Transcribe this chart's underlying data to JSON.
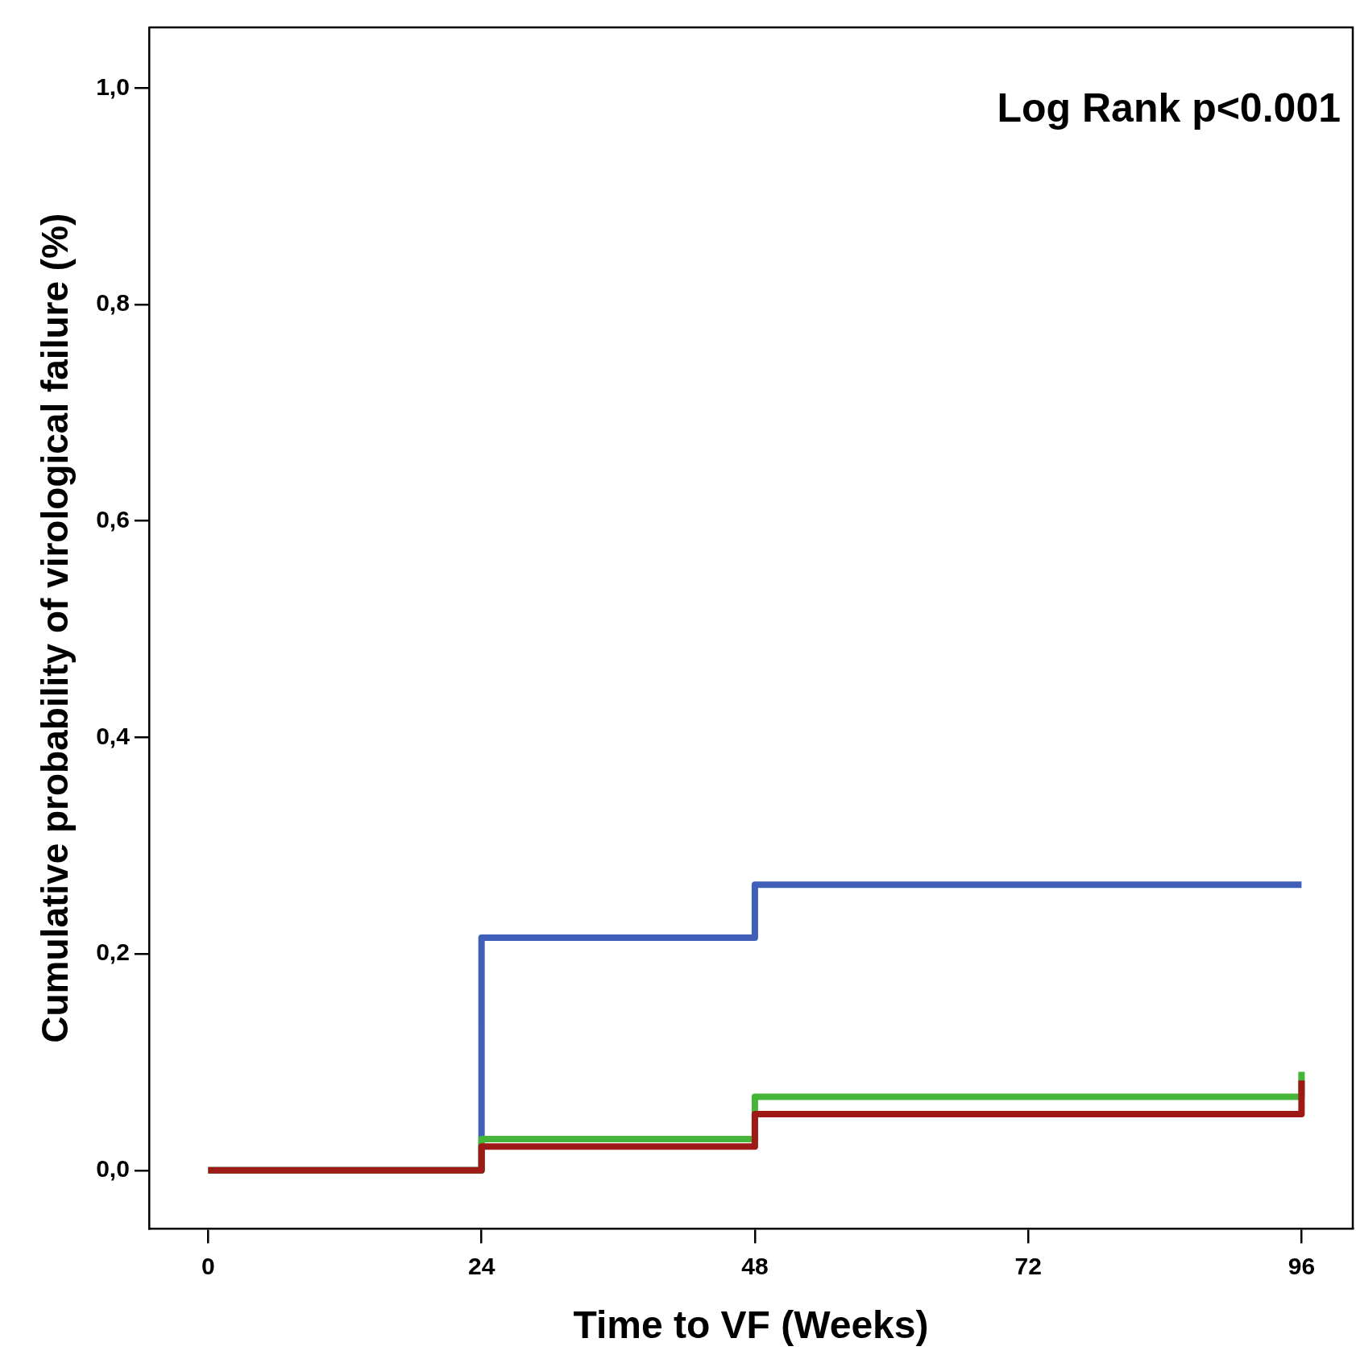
{
  "chart_data": {
    "type": "step",
    "xlabel": "Time to VF (Weeks)",
    "ylabel": "Cumulative probability of virological failure (%)",
    "annotations": [
      "Log Rank p<0.001"
    ],
    "series": [
      {
        "color": "#3f5fb8",
        "x": [
          0,
          24,
          48,
          96
        ],
        "values": [
          0,
          0.215,
          0.264,
          0.264
        ]
      },
      {
        "color": "#44b538",
        "x": [
          0,
          24,
          48,
          96,
          96
        ],
        "values": [
          0,
          0.029,
          0.068,
          0.068,
          0.091
        ]
      },
      {
        "color": "#9e1a16",
        "x": [
          0,
          24,
          48,
          96,
          96
        ],
        "values": [
          0,
          0.022,
          0.052,
          0.052,
          0.083
        ]
      }
    ],
    "xlim": [
      -5.2,
      100.5
    ],
    "xticks": [
      0,
      24,
      48,
      72,
      96
    ],
    "ylim": [
      -0.054,
      1.056
    ],
    "yticks": [
      {
        "value": 0,
        "label": "0,0"
      },
      {
        "value": 0.2,
        "label": "0,2"
      },
      {
        "value": 0.4,
        "label": "0,4"
      },
      {
        "value": 0.6,
        "label": "0,6"
      },
      {
        "value": 0.8,
        "label": "0,8"
      },
      {
        "value": 1,
        "label": "1,0"
      }
    ],
    "grid": false,
    "legend": false,
    "marker": "none",
    "line_style": "solid"
  }
}
